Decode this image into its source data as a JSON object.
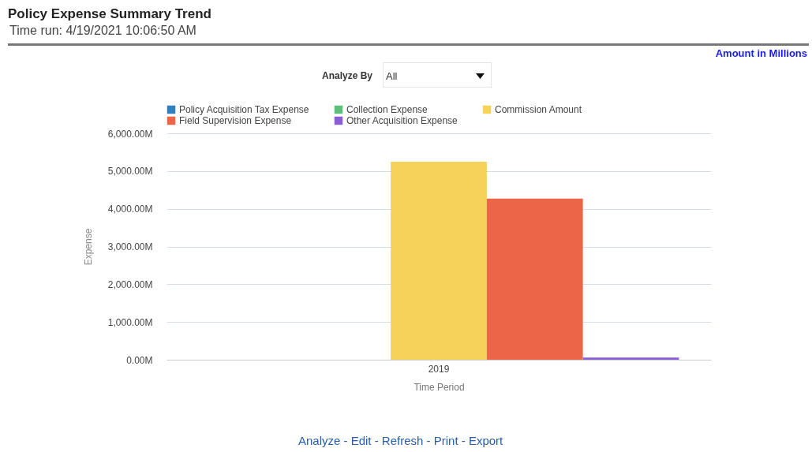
{
  "chart_data": {
    "type": "bar",
    "title": "Policy Expense Summary Trend",
    "subtitle": "Time run: 4/19/2021 10:06:50 AM",
    "xlabel": "Time Period",
    "ylabel": "Expense",
    "annotations": [
      "Amount in Millions",
      "Analyze By",
      "All",
      "Analyze - Edit - Refresh - Print - Export"
    ],
    "categories": [
      "2019"
    ],
    "series": [
      {
        "name": "Policy Acquisition Tax Expense",
        "color": "#2f7ebd",
        "values": [
          0
        ]
      },
      {
        "name": "Collection Expense",
        "color": "#5fbf7a",
        "values": [
          0
        ]
      },
      {
        "name": "Commission Amount",
        "color": "#f7d25a",
        "values": [
          5250
        ]
      },
      {
        "name": "Field Supervision Expense",
        "color": "#ec6548",
        "values": [
          4270
        ]
      },
      {
        "name": "Other Acquisition Expense",
        "color": "#8a5fd6",
        "values": [
          60
        ]
      }
    ],
    "ylim": [
      0,
      6000
    ],
    "yticks": [
      {
        "value": 0,
        "label": "0.00M"
      },
      {
        "value": 1000,
        "label": "1,000.00M"
      },
      {
        "value": 2000,
        "label": "2,000.00M"
      },
      {
        "value": 3000,
        "label": "3,000.00M"
      },
      {
        "value": 4000,
        "label": "4,000.00M"
      },
      {
        "value": 5000,
        "label": "5,000.00M"
      },
      {
        "value": 6000,
        "label": "6,000.00M"
      }
    ],
    "grid": "y",
    "legend": "top"
  }
}
